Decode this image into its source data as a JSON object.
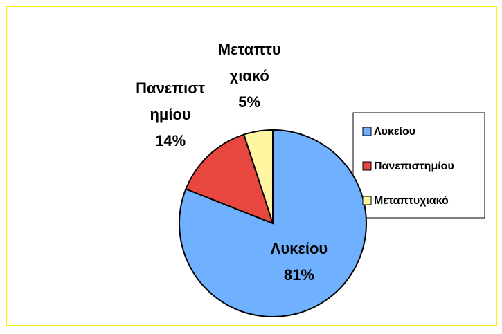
{
  "chart_data": {
    "type": "pie",
    "categories": [
      "Λυκείου",
      "Πανεπιστημίου",
      "Μεταπτυχιακό"
    ],
    "values": [
      81,
      14,
      5
    ],
    "value_labels": [
      "81%",
      "14%",
      "5%"
    ],
    "colors": [
      "#6fb0ff",
      "#e8473f",
      "#fff4a0"
    ],
    "legend": "right"
  }
}
